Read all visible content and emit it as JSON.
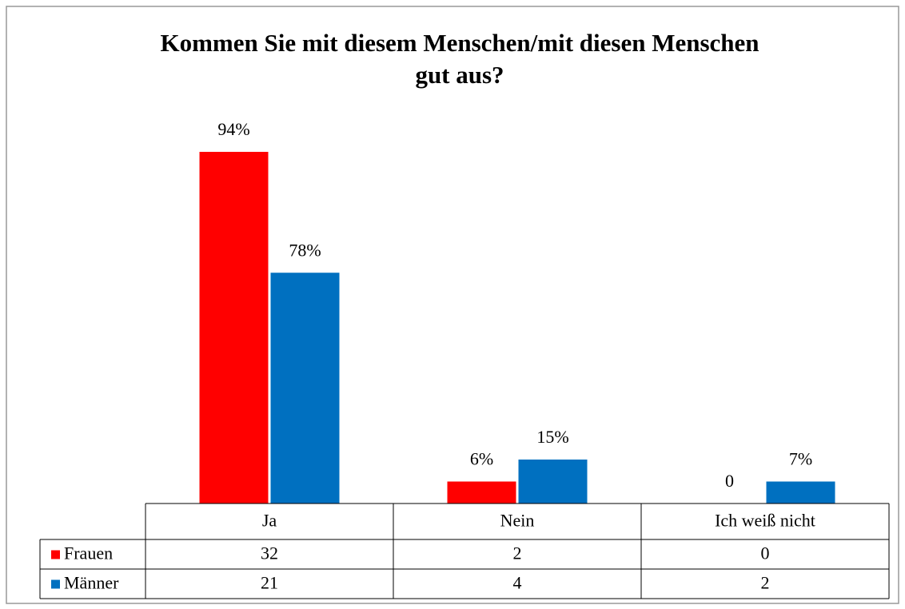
{
  "chart_data": {
    "type": "bar",
    "title": "Kommen Sie mit diesem Menschen/mit diesen Menschen gut aus?",
    "categories": [
      "Ja",
      "Nein",
      "Ich weiß nicht"
    ],
    "series": [
      {
        "name": "Frauen",
        "color": "#ff0000",
        "values": [
          32,
          2,
          0
        ],
        "labels": [
          "94%",
          "6%",
          "0"
        ]
      },
      {
        "name": "Männer",
        "color": "#0070c0",
        "values": [
          21,
          4,
          2
        ],
        "labels": [
          "78%",
          "15%",
          "7%"
        ]
      }
    ],
    "data_table": true
  }
}
